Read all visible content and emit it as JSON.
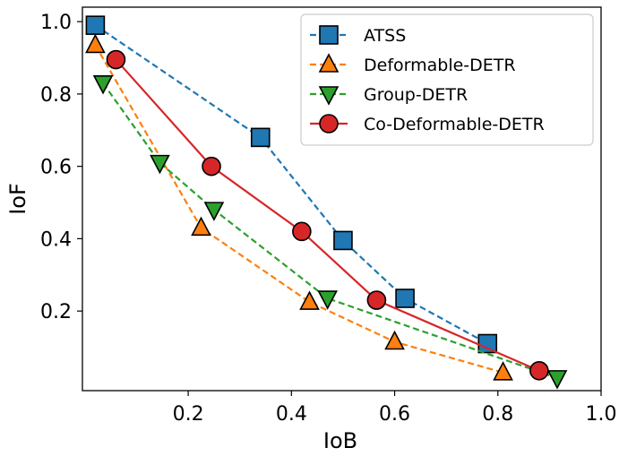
{
  "chart_data": {
    "type": "line",
    "title": "",
    "xlabel": "IoB",
    "ylabel": "IoF",
    "xlim": [
      -0.005,
      1.0
    ],
    "ylim": [
      -0.02,
      1.04
    ],
    "xticks": [
      0.2,
      0.4,
      0.6,
      0.8,
      1.0
    ],
    "xtick_labels": [
      "0.2",
      "0.4",
      "0.6",
      "0.8",
      "1.0"
    ],
    "yticks": [
      0.2,
      0.4,
      0.6,
      0.8,
      1.0
    ],
    "ytick_labels": [
      "0.2",
      "0.4",
      "0.6",
      "0.8",
      "1.0"
    ],
    "grid": false,
    "legend_position": "top-right",
    "series": [
      {
        "name": "ATSS",
        "color": "#1f77b4",
        "line_style": "dashed",
        "marker": "square",
        "x": [
          0.02,
          0.34,
          0.5,
          0.62,
          0.78
        ],
        "y": [
          0.99,
          0.68,
          0.395,
          0.235,
          0.11
        ]
      },
      {
        "name": "Deformable-DETR",
        "color": "#ff7f0e",
        "line_style": "dashed",
        "marker": "triangle-up",
        "x": [
          0.02,
          0.225,
          0.435,
          0.6,
          0.81
        ],
        "y": [
          0.935,
          0.43,
          0.225,
          0.115,
          0.03
        ]
      },
      {
        "name": "Group-DETR",
        "color": "#2ca02c",
        "line_style": "dashed",
        "marker": "triangle-down",
        "x": [
          0.035,
          0.145,
          0.25,
          0.47,
          0.915
        ],
        "y": [
          0.83,
          0.61,
          0.48,
          0.235,
          0.015
        ]
      },
      {
        "name": "Co-Deformable-DETR",
        "color": "#d62728",
        "line_style": "solid",
        "marker": "circle",
        "x": [
          0.06,
          0.245,
          0.42,
          0.565,
          0.88
        ],
        "y": [
          0.895,
          0.6,
          0.42,
          0.23,
          0.035
        ]
      }
    ]
  }
}
